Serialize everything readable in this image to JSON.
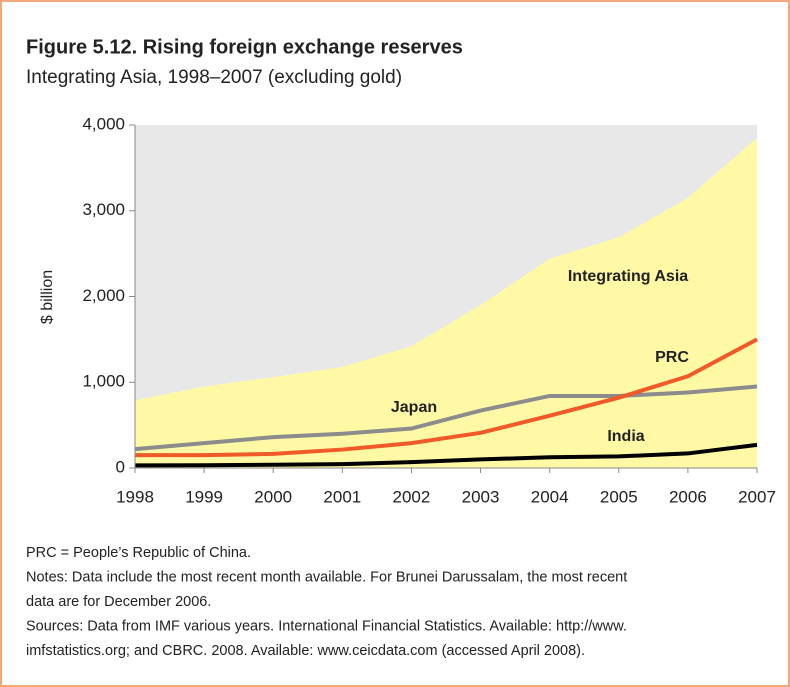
{
  "chart_data": {
    "type": "line",
    "title": "Figure 5.12. Rising foreign exchange reserves",
    "subtitle": "Integrating Asia, 1998–2007 (excluding gold)",
    "y_label": "$ billion",
    "categories": [
      "1998",
      "1999",
      "2000",
      "2001",
      "2002",
      "2003",
      "2004",
      "2005",
      "2006",
      "2007"
    ],
    "ylim": [
      0,
      4000
    ],
    "yticks": [
      0,
      {
        "value": 1000,
        "label": "1,000"
      },
      {
        "value": 2000,
        "label": "2,000"
      },
      {
        "value": 3000,
        "label": "3,000"
      },
      {
        "value": 4000,
        "label": "4,000"
      }
    ],
    "series": [
      {
        "name": "Integrating Asia",
        "style": "area",
        "color": "#fff9a6",
        "values": [
          790,
          950,
          1060,
          1180,
          1420,
          1900,
          2440,
          2690,
          3150,
          3850
        ]
      },
      {
        "name": "Japan",
        "style": "line",
        "color": "#8c8c8c",
        "values": [
          220,
          290,
          360,
          400,
          460,
          670,
          840,
          840,
          880,
          950
        ]
      },
      {
        "name": "PRC",
        "style": "line",
        "color": "#f05a28",
        "values": [
          150,
          150,
          165,
          215,
          290,
          410,
          610,
          820,
          1070,
          1500
        ]
      },
      {
        "name": "India",
        "style": "line",
        "color": "#000000",
        "values": [
          30,
          32,
          38,
          45,
          68,
          100,
          125,
          135,
          170,
          270
        ]
      }
    ],
    "notes": [
      "PRC = People’s Republic of China.",
      "Notes: Data include the most recent month available. For Brunei Darussalam, the most recent",
      "data are for December 2006.",
      "Sources: Data from IMF various years. International Financial Statistics. Available: http://www.",
      "imfstatistics.org; and CBRC. 2008. Available: www.ceicdata.com (accessed April 2008)."
    ]
  }
}
